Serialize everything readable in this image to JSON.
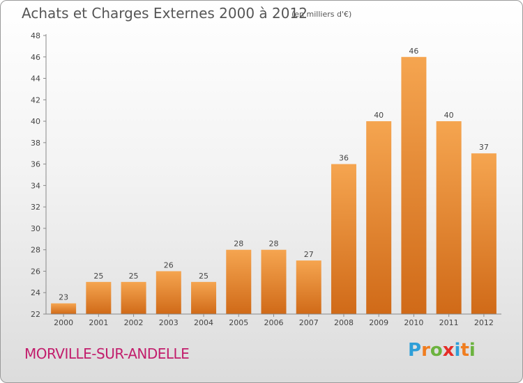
{
  "header": {
    "title": "Achats et Charges Externes 2000 à 2012",
    "unit_note": "(en milliers d'€)"
  },
  "footer": {
    "commune": "MORVILLE-SUR-ANDELLE",
    "brand_letters": [
      "P",
      "r",
      "o",
      "x",
      "i",
      "t",
      "i"
    ],
    "brand_colors": [
      "#2f9fd8",
      "#f07d1f",
      "#6cb33f",
      "#e52d27",
      "#2f9fd8",
      "#f07d1f",
      "#6cb33f"
    ]
  },
  "chart_data": {
    "type": "bar",
    "categories": [
      "2000",
      "2001",
      "2002",
      "2003",
      "2004",
      "2005",
      "2006",
      "2007",
      "2008",
      "2009",
      "2010",
      "2011",
      "2012"
    ],
    "values": [
      23,
      25,
      25,
      26,
      25,
      28,
      28,
      27,
      36,
      40,
      46,
      40,
      37
    ],
    "data_labels": [
      "23",
      "25",
      "25",
      "26",
      "25",
      "28",
      "28",
      "27",
      "36",
      "40",
      "46",
      "40",
      "37"
    ],
    "yticks": [
      "22",
      "24",
      "26",
      "28",
      "30",
      "32",
      "34",
      "36",
      "38",
      "40",
      "42",
      "44",
      "46",
      "48"
    ],
    "ylim": [
      22,
      48
    ],
    "grid": false,
    "bar_color_light": "#f5a550",
    "bar_color_dark": "#d06a18"
  }
}
